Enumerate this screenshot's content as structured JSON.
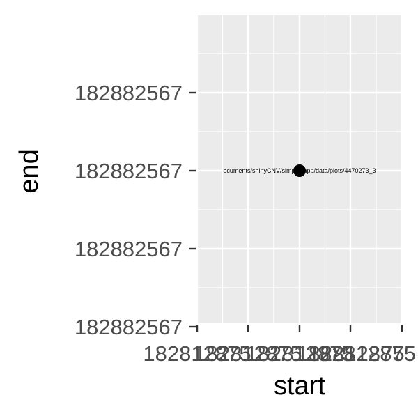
{
  "chart_data": {
    "type": "scatter",
    "xlabel": "start",
    "ylabel": "end",
    "points": [
      {
        "x": 182812875,
        "y": 182882567,
        "label": "ocuments/shinyCNV/simple_app/data/plots/4470273_3"
      }
    ],
    "x_tick_labels": [
      "182812875",
      "182812875",
      "182812875",
      "182812875",
      "182812875"
    ],
    "y_tick_labels": [
      "182882567",
      "182882567",
      "182882567",
      "182882567"
    ],
    "grid": true,
    "panel_background": "#ebebeb",
    "grid_color": "#ffffff",
    "point_color": "#000000",
    "legend": "none"
  }
}
